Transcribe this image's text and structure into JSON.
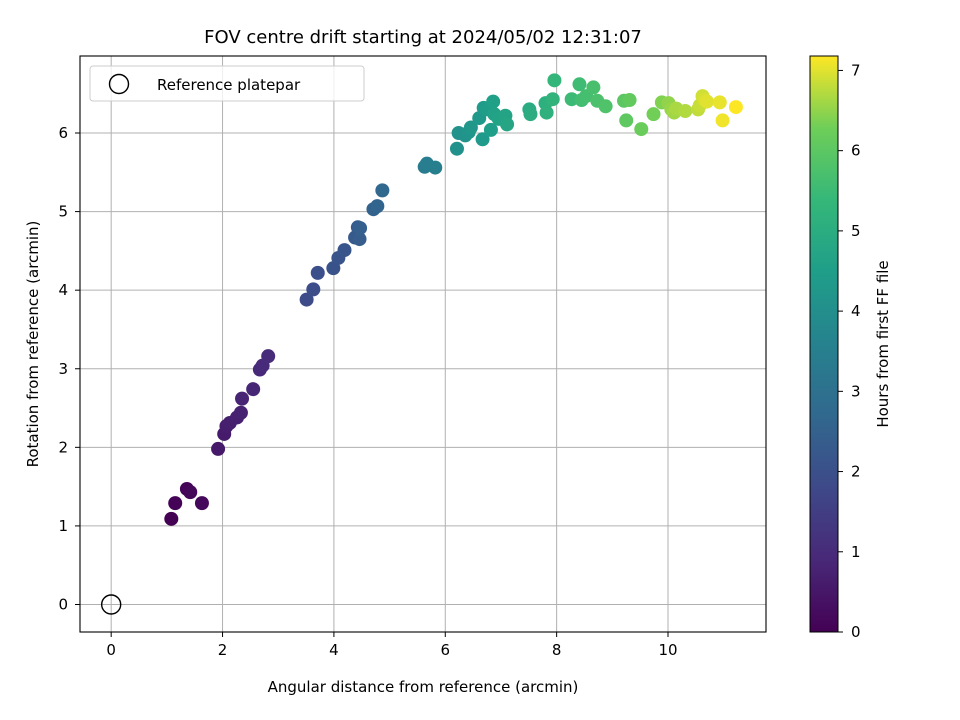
{
  "chart_data": {
    "type": "scatter",
    "title": "FOV centre drift starting at 2024/05/02 12:31:07",
    "xlabel": "Angular distance from reference (arcmin)",
    "ylabel": "Rotation from reference (arcmin)",
    "xlim": [
      -0.56,
      11.76
    ],
    "ylim": [
      -0.35,
      6.98
    ],
    "xticks": [
      0,
      2,
      4,
      6,
      8,
      10
    ],
    "yticks": [
      0,
      1,
      2,
      3,
      4,
      5,
      6
    ],
    "grid": true,
    "legend": {
      "placement": "top-left",
      "entries": [
        "Reference platepar"
      ]
    },
    "reference_point": {
      "x": 0.0,
      "y": 0.0,
      "label": "Reference platepar"
    },
    "colorbar": {
      "label": "Hours from first FF file",
      "range": [
        0,
        7.18
      ],
      "ticks": [
        0,
        1,
        2,
        3,
        4,
        5,
        6,
        7
      ],
      "colormap": "viridis"
    },
    "series": [
      {
        "x": [
          1.08,
          1.15,
          1.36,
          1.42,
          1.63,
          1.92,
          2.03,
          2.07,
          2.13,
          2.26,
          2.33,
          2.35,
          2.55,
          2.67,
          2.72,
          2.82,
          3.51,
          3.63,
          3.71,
          3.99,
          4.08,
          4.19,
          4.38,
          4.43,
          4.46,
          4.47,
          4.71,
          4.78,
          4.87,
          5.63,
          5.67,
          5.82,
          6.21,
          6.24,
          6.36,
          6.42,
          6.46,
          6.61,
          6.67,
          6.69,
          6.73,
          6.82,
          6.86,
          6.88,
          6.96,
          7.08,
          7.11,
          7.51,
          7.53,
          7.8,
          7.82,
          7.93,
          7.96,
          8.27,
          8.41,
          8.45,
          8.53,
          8.66,
          8.73,
          8.88,
          9.21,
          9.25,
          9.31,
          9.52,
          9.74,
          9.89,
          10.01,
          10.06,
          10.11,
          10.15,
          10.31,
          10.54,
          10.57,
          10.62,
          10.66,
          10.7,
          10.93,
          10.98,
          11.22
        ],
        "y": [
          1.09,
          1.29,
          1.47,
          1.43,
          1.29,
          1.98,
          2.17,
          2.27,
          2.31,
          2.38,
          2.44,
          2.62,
          2.74,
          2.99,
          3.04,
          3.16,
          3.88,
          4.01,
          4.22,
          4.28,
          4.41,
          4.51,
          4.67,
          4.8,
          4.65,
          4.79,
          5.03,
          5.07,
          5.27,
          5.57,
          5.61,
          5.56,
          5.8,
          6.0,
          5.97,
          6.01,
          6.07,
          6.19,
          5.92,
          6.32,
          6.3,
          6.04,
          6.4,
          6.24,
          6.18,
          6.22,
          6.11,
          6.3,
          6.24,
          6.38,
          6.26,
          6.43,
          6.67,
          6.43,
          6.62,
          6.42,
          6.47,
          6.58,
          6.41,
          6.34,
          6.41,
          6.16,
          6.42,
          6.05,
          6.24,
          6.39,
          6.38,
          6.3,
          6.26,
          6.31,
          6.28,
          6.3,
          6.35,
          6.47,
          6.42,
          6.4,
          6.39,
          6.16,
          6.33
        ],
        "hours": [
          0.0,
          0.05,
          0.1,
          0.14,
          0.18,
          0.55,
          0.6,
          0.64,
          0.68,
          0.72,
          0.76,
          0.8,
          0.85,
          0.9,
          0.95,
          1.0,
          1.85,
          1.92,
          1.98,
          2.05,
          2.12,
          2.18,
          2.25,
          2.32,
          2.38,
          2.45,
          2.55,
          2.62,
          2.7,
          3.35,
          3.42,
          3.48,
          4.05,
          4.1,
          4.15,
          4.2,
          4.25,
          4.3,
          4.35,
          4.4,
          4.45,
          4.5,
          4.55,
          4.6,
          4.65,
          4.7,
          4.75,
          4.95,
          5.0,
          5.1,
          5.15,
          5.25,
          5.35,
          5.5,
          5.55,
          5.6,
          5.65,
          5.7,
          5.75,
          5.8,
          6.0,
          6.05,
          6.1,
          6.2,
          6.3,
          6.4,
          6.5,
          6.55,
          6.6,
          6.65,
          6.7,
          6.8,
          6.85,
          6.9,
          6.95,
          7.0,
          7.05,
          7.1,
          7.18
        ]
      }
    ]
  }
}
